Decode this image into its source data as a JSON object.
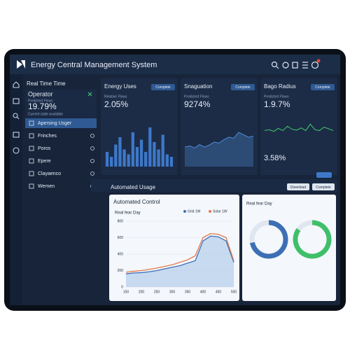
{
  "header": {
    "title": "Energy Central Management System"
  },
  "sidebar": {
    "section": "Real Time Time",
    "operator": {
      "title": "Operator",
      "label": "Predicted Flows",
      "value": "19.79%",
      "note": "Current state available"
    },
    "items": [
      "Apersing Usger",
      "Frinches",
      "Poros",
      "Epere",
      "Clayaenco",
      "Wemen"
    ]
  },
  "panels": [
    {
      "title": "Energy Uses",
      "button": "Complete",
      "label": "Relative Flows",
      "value": "2.05%"
    },
    {
      "title": "Snaguation",
      "button": "Complete",
      "label": "Predicted Flows",
      "value": "9274%"
    },
    {
      "title": "Bago Radius",
      "button": "Complete",
      "label": "Predicted Flows",
      "value": "1.9.7%",
      "value2": "3.58%"
    }
  ],
  "usage": {
    "title": "Automated Usage",
    "buttons": [
      "Download",
      "Complete"
    ],
    "card": {
      "title": "Automated Control",
      "subtitle": "Real fear Day"
    },
    "card2": {
      "subtitle": "Real fear Day"
    }
  },
  "chart_data": [
    {
      "type": "bar",
      "values": [
        30,
        20,
        45,
        60,
        35,
        25,
        70,
        40,
        55,
        30,
        80,
        50,
        35,
        65,
        25,
        20
      ],
      "ylim": [
        0,
        100
      ],
      "color": "#3d78c9"
    },
    {
      "type": "area",
      "values": [
        40,
        42,
        38,
        45,
        40,
        44,
        50,
        48,
        55,
        60,
        58,
        70,
        65,
        60,
        62
      ],
      "ylim": [
        0,
        100
      ],
      "color": "#4a86cf"
    },
    {
      "type": "line",
      "values": [
        30,
        32,
        28,
        35,
        30,
        40,
        33,
        31,
        36,
        30,
        45,
        32,
        30,
        38,
        34,
        30
      ],
      "ylim": [
        0,
        60
      ],
      "color": "#3fbf6a"
    },
    {
      "type": "line",
      "x": [
        150,
        175,
        200,
        225,
        250,
        275,
        300,
        325,
        350,
        375,
        400,
        425,
        450,
        475,
        500
      ],
      "series": [
        {
          "name": "Grid 1W",
          "color": "#3d6fb5",
          "values": [
            160,
            170,
            175,
            185,
            200,
            220,
            240,
            260,
            290,
            320,
            560,
            620,
            610,
            560,
            300
          ]
        },
        {
          "name": "Solar 1W",
          "color": "#e07a4a",
          "values": [
            180,
            190,
            200,
            215,
            230,
            250,
            270,
            300,
            330,
            380,
            600,
            650,
            640,
            600,
            320
          ]
        }
      ],
      "xlim": [
        150,
        500
      ],
      "xticks": [
        150,
        200,
        250,
        300,
        350,
        400,
        450,
        500
      ],
      "ylim": [
        0,
        800
      ],
      "yticks": [
        0,
        200,
        400,
        600,
        800
      ],
      "grid": true
    },
    {
      "type": "pie",
      "values": [
        72,
        28
      ],
      "colors": [
        "#3d6fb5",
        "#dfe6ef"
      ]
    },
    {
      "type": "pie",
      "values": [
        85,
        15
      ],
      "colors": [
        "#3fbf6a",
        "#dfe6ef"
      ]
    }
  ]
}
